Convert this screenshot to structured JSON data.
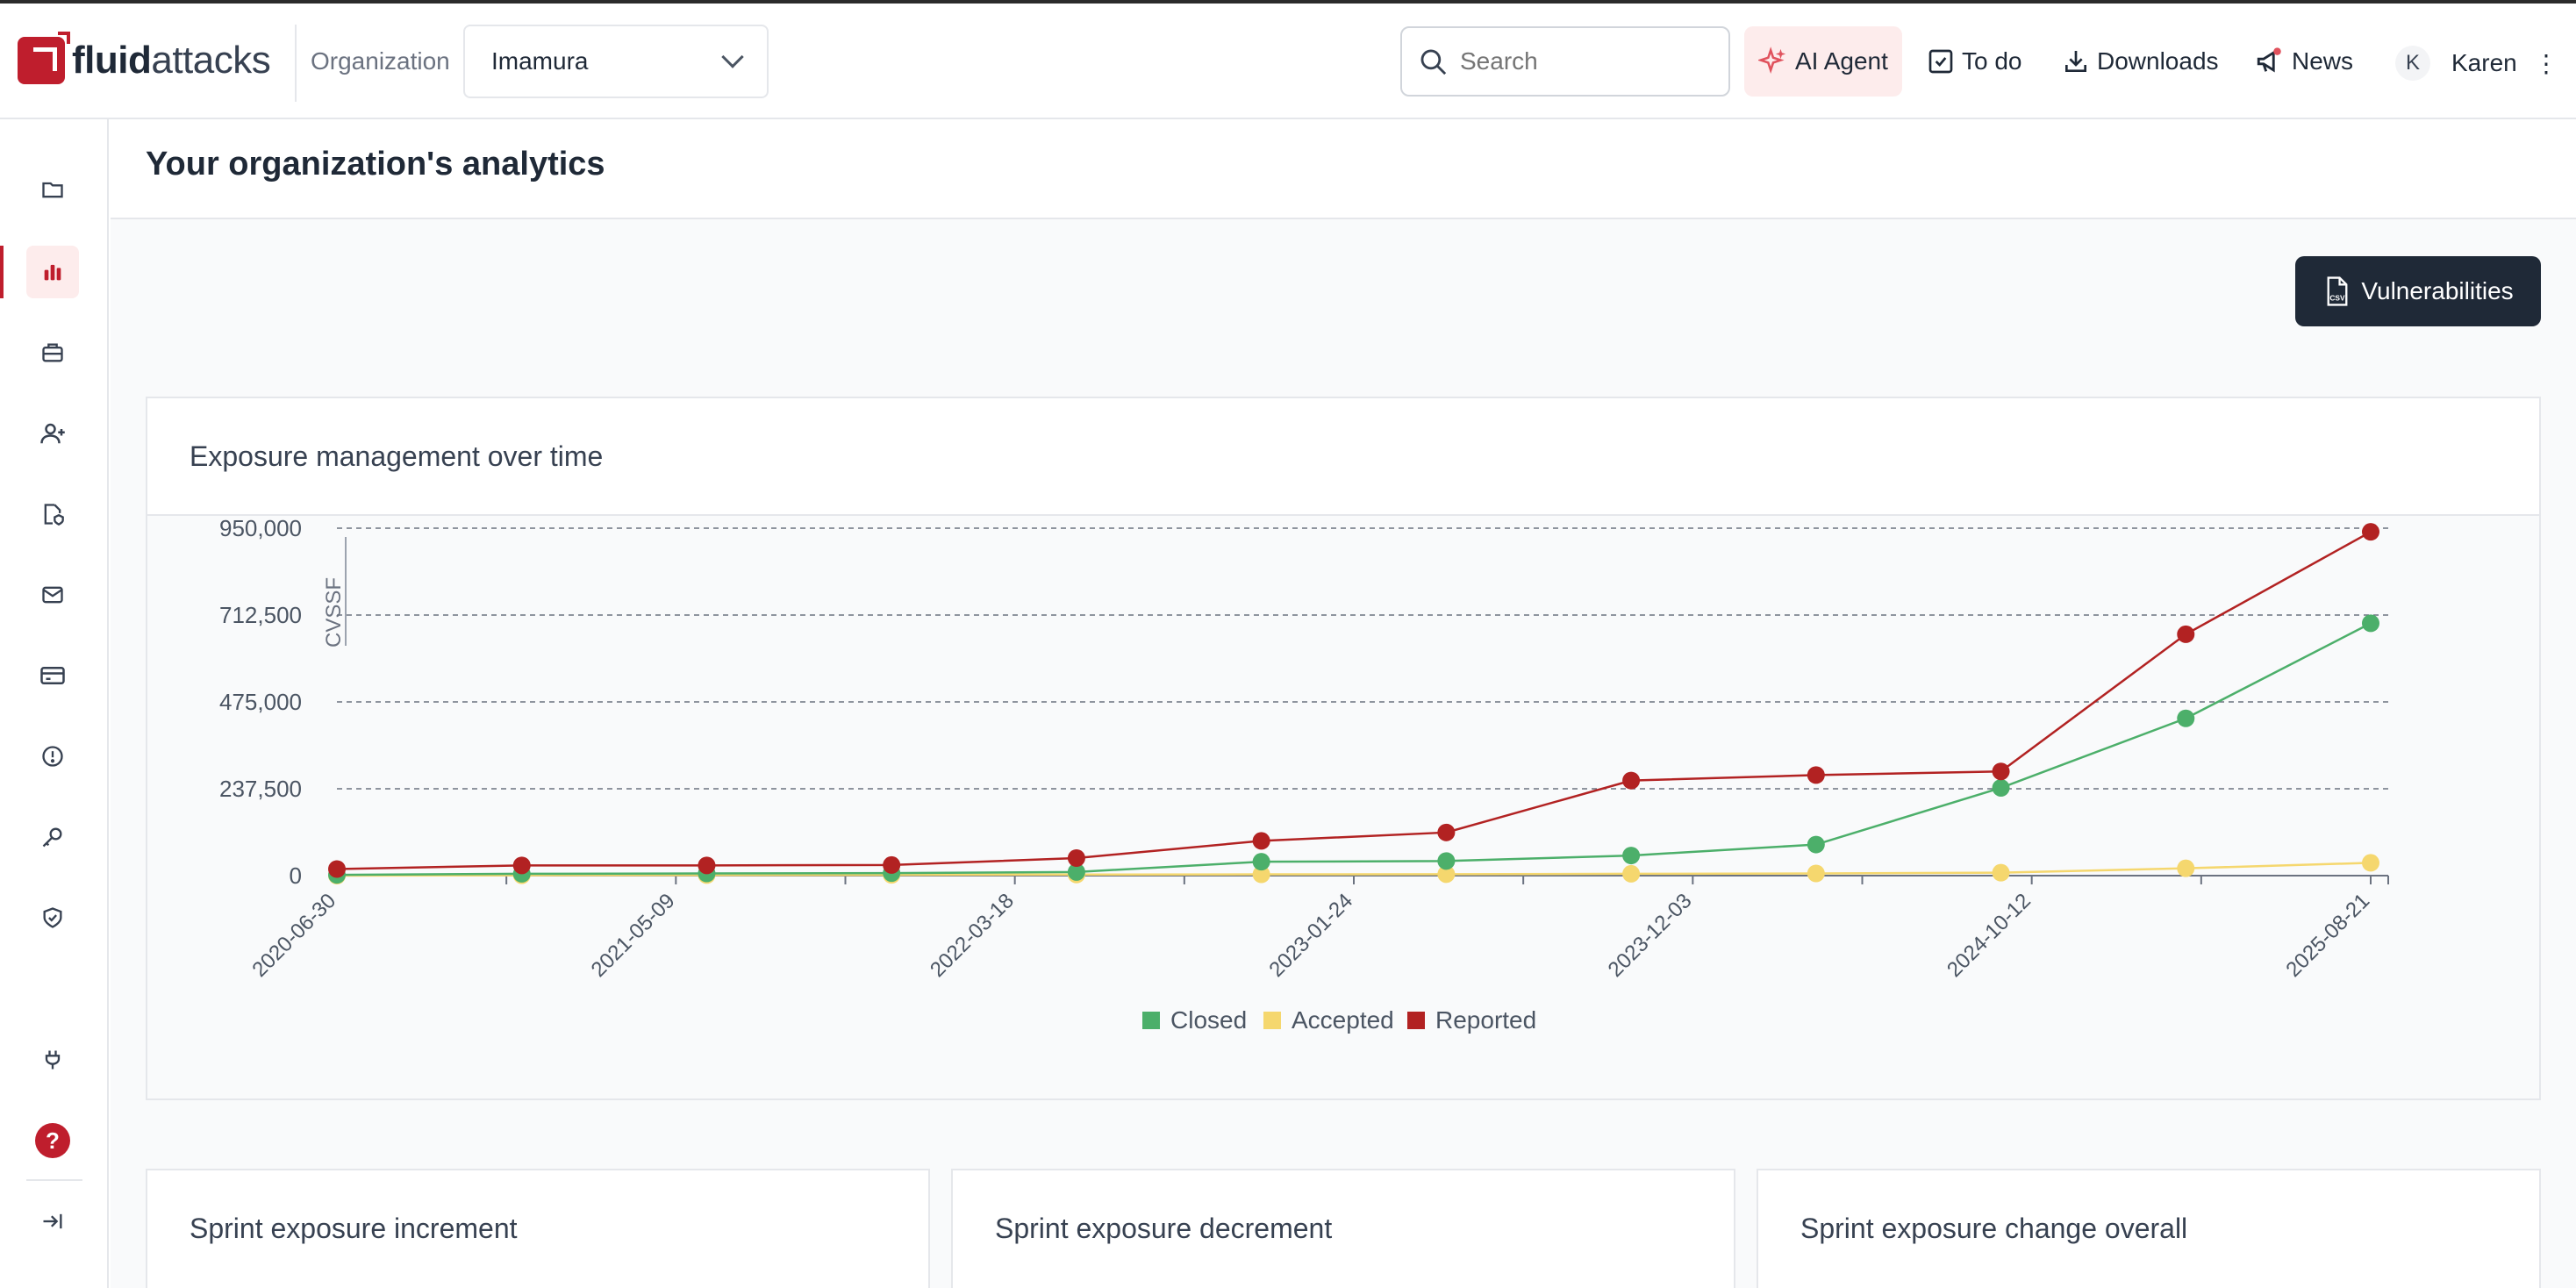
{
  "app": {
    "logo_bold": "fluid",
    "logo_light": "attacks",
    "org_label": "Organization",
    "org_value": "Imamura"
  },
  "header": {
    "search_placeholder": "Search",
    "ai_agent": "AI Agent",
    "todo": "To do",
    "downloads": "Downloads",
    "news": "News",
    "avatar_initial": "K",
    "user_name": "Karen",
    "menu_glyph": "⋮"
  },
  "icons": {
    "sidebar": [
      "folder-icon",
      "analytics-icon",
      "briefcase-icon",
      "user-plus-icon",
      "file-shield-icon",
      "mail-icon",
      "credit-card-icon",
      "alert-circle-icon",
      "key-icon",
      "shield-check-icon",
      "plug-icon",
      "help-icon",
      "collapse-icon"
    ]
  },
  "page": {
    "title": "Your organization's analytics",
    "csv_button": "Vulnerabilities",
    "csv_badge": "CSV"
  },
  "colors": {
    "brand": "#bf1e2d",
    "closed": "#4caf6a",
    "accepted": "#f5d76e",
    "reported": "#b22222"
  },
  "chart_card_title": "Exposure management over time",
  "chart_data": {
    "type": "line",
    "title": "Exposure management over time",
    "ylabel": "CVSSF",
    "xlabel": "",
    "ylim": [
      0,
      950000
    ],
    "y_ticks": [
      "950,000",
      "712,500",
      "475,000",
      "237,500",
      "0"
    ],
    "x_tick_labels": [
      "2020-06-30",
      "2021-05-09",
      "2022-03-18",
      "2023-01-24",
      "2023-12-03",
      "2024-10-12",
      "2025-08-21"
    ],
    "grid": true,
    "legend_position": "bottom",
    "series": [
      {
        "name": "Closed",
        "values": [
          2000,
          5000,
          6000,
          7000,
          10000,
          38000,
          40000,
          55000,
          85000,
          240000,
          430000,
          690000
        ]
      },
      {
        "name": "Accepted",
        "values": [
          0,
          1000,
          1500,
          2000,
          3000,
          3500,
          4000,
          5000,
          6000,
          8000,
          20000,
          35000
        ]
      },
      {
        "name": "Reported",
        "values": [
          18000,
          28000,
          28000,
          29000,
          48000,
          95000,
          118000,
          260000,
          275000,
          285000,
          660000,
          940000
        ]
      }
    ]
  },
  "bottom_cards": {
    "increment": "Sprint exposure increment",
    "decrement": "Sprint exposure decrement",
    "overall": "Sprint exposure change overall"
  }
}
